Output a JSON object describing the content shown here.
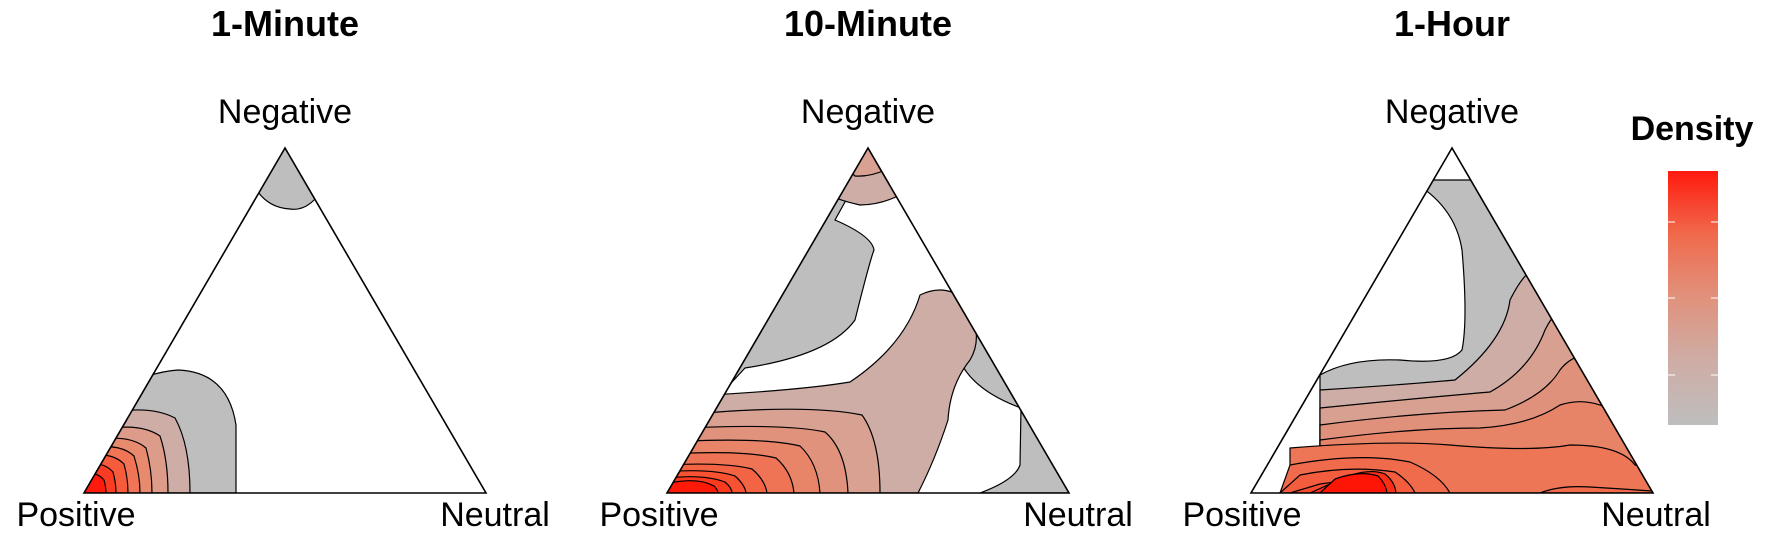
{
  "chart_data": [
    {
      "type": "ternary-density-contour",
      "title": "1-Minute",
      "axes": {
        "top": "Negative",
        "left": "Positive",
        "right": "Neutral"
      },
      "levels": [
        {
          "level": 0.1,
          "color": "#BEBEBE"
        },
        {
          "level": 0.2,
          "color": "#CEADA6"
        },
        {
          "level": 0.3,
          "color": "#DC9C89"
        },
        {
          "level": 0.4,
          "color": "#E88A6E"
        },
        {
          "level": 0.5,
          "color": "#F07455"
        },
        {
          "level": 0.6,
          "color": "#F65B3C"
        },
        {
          "level": 0.7,
          "color": "#FB3C22"
        },
        {
          "level": 0.8,
          "color": "#FF1A0E"
        }
      ]
    },
    {
      "type": "ternary-density-contour",
      "title": "10-Minute",
      "axes": {
        "top": "Negative",
        "left": "Positive",
        "right": "Neutral"
      },
      "levels": [
        {
          "level": 0.1,
          "color": "#BEBEBE"
        },
        {
          "level": 0.2,
          "color": "#CEADA6"
        },
        {
          "level": 0.3,
          "color": "#D8A191"
        },
        {
          "level": 0.4,
          "color": "#E0927D"
        },
        {
          "level": 0.5,
          "color": "#E88468"
        },
        {
          "level": 0.6,
          "color": "#EE7455"
        },
        {
          "level": 0.7,
          "color": "#F36444"
        },
        {
          "level": 0.8,
          "color": "#F85233"
        },
        {
          "level": 0.9,
          "color": "#FC3A1F"
        },
        {
          "level": 1.0,
          "color": "#FF1A08"
        }
      ]
    },
    {
      "type": "ternary-density-contour",
      "title": "1-Hour",
      "axes": {
        "top": "Negative",
        "left": "Positive",
        "right": "Neutral"
      },
      "levels": [
        {
          "level": 0.1,
          "color": "#BEBEBE"
        },
        {
          "level": 0.2,
          "color": "#CEADA6"
        },
        {
          "level": 0.3,
          "color": "#D8A090"
        },
        {
          "level": 0.4,
          "color": "#E0917B"
        },
        {
          "level": 0.5,
          "color": "#E78467"
        },
        {
          "level": 0.6,
          "color": "#EC7656"
        },
        {
          "level": 0.7,
          "color": "#F06A4C"
        },
        {
          "level": 0.8,
          "color": "#F45C3E"
        },
        {
          "level": 0.9,
          "color": "#F84A2D"
        },
        {
          "level": 1.0,
          "color": "#FC2E18"
        },
        {
          "level": 1.1,
          "color": "#FF1505"
        }
      ]
    }
  ],
  "legend": {
    "title": "Density",
    "gradient_colors": [
      "#FF1A0E",
      "#F06A4C",
      "#E0927D",
      "#CEADA6",
      "#BEBEBE"
    ]
  }
}
